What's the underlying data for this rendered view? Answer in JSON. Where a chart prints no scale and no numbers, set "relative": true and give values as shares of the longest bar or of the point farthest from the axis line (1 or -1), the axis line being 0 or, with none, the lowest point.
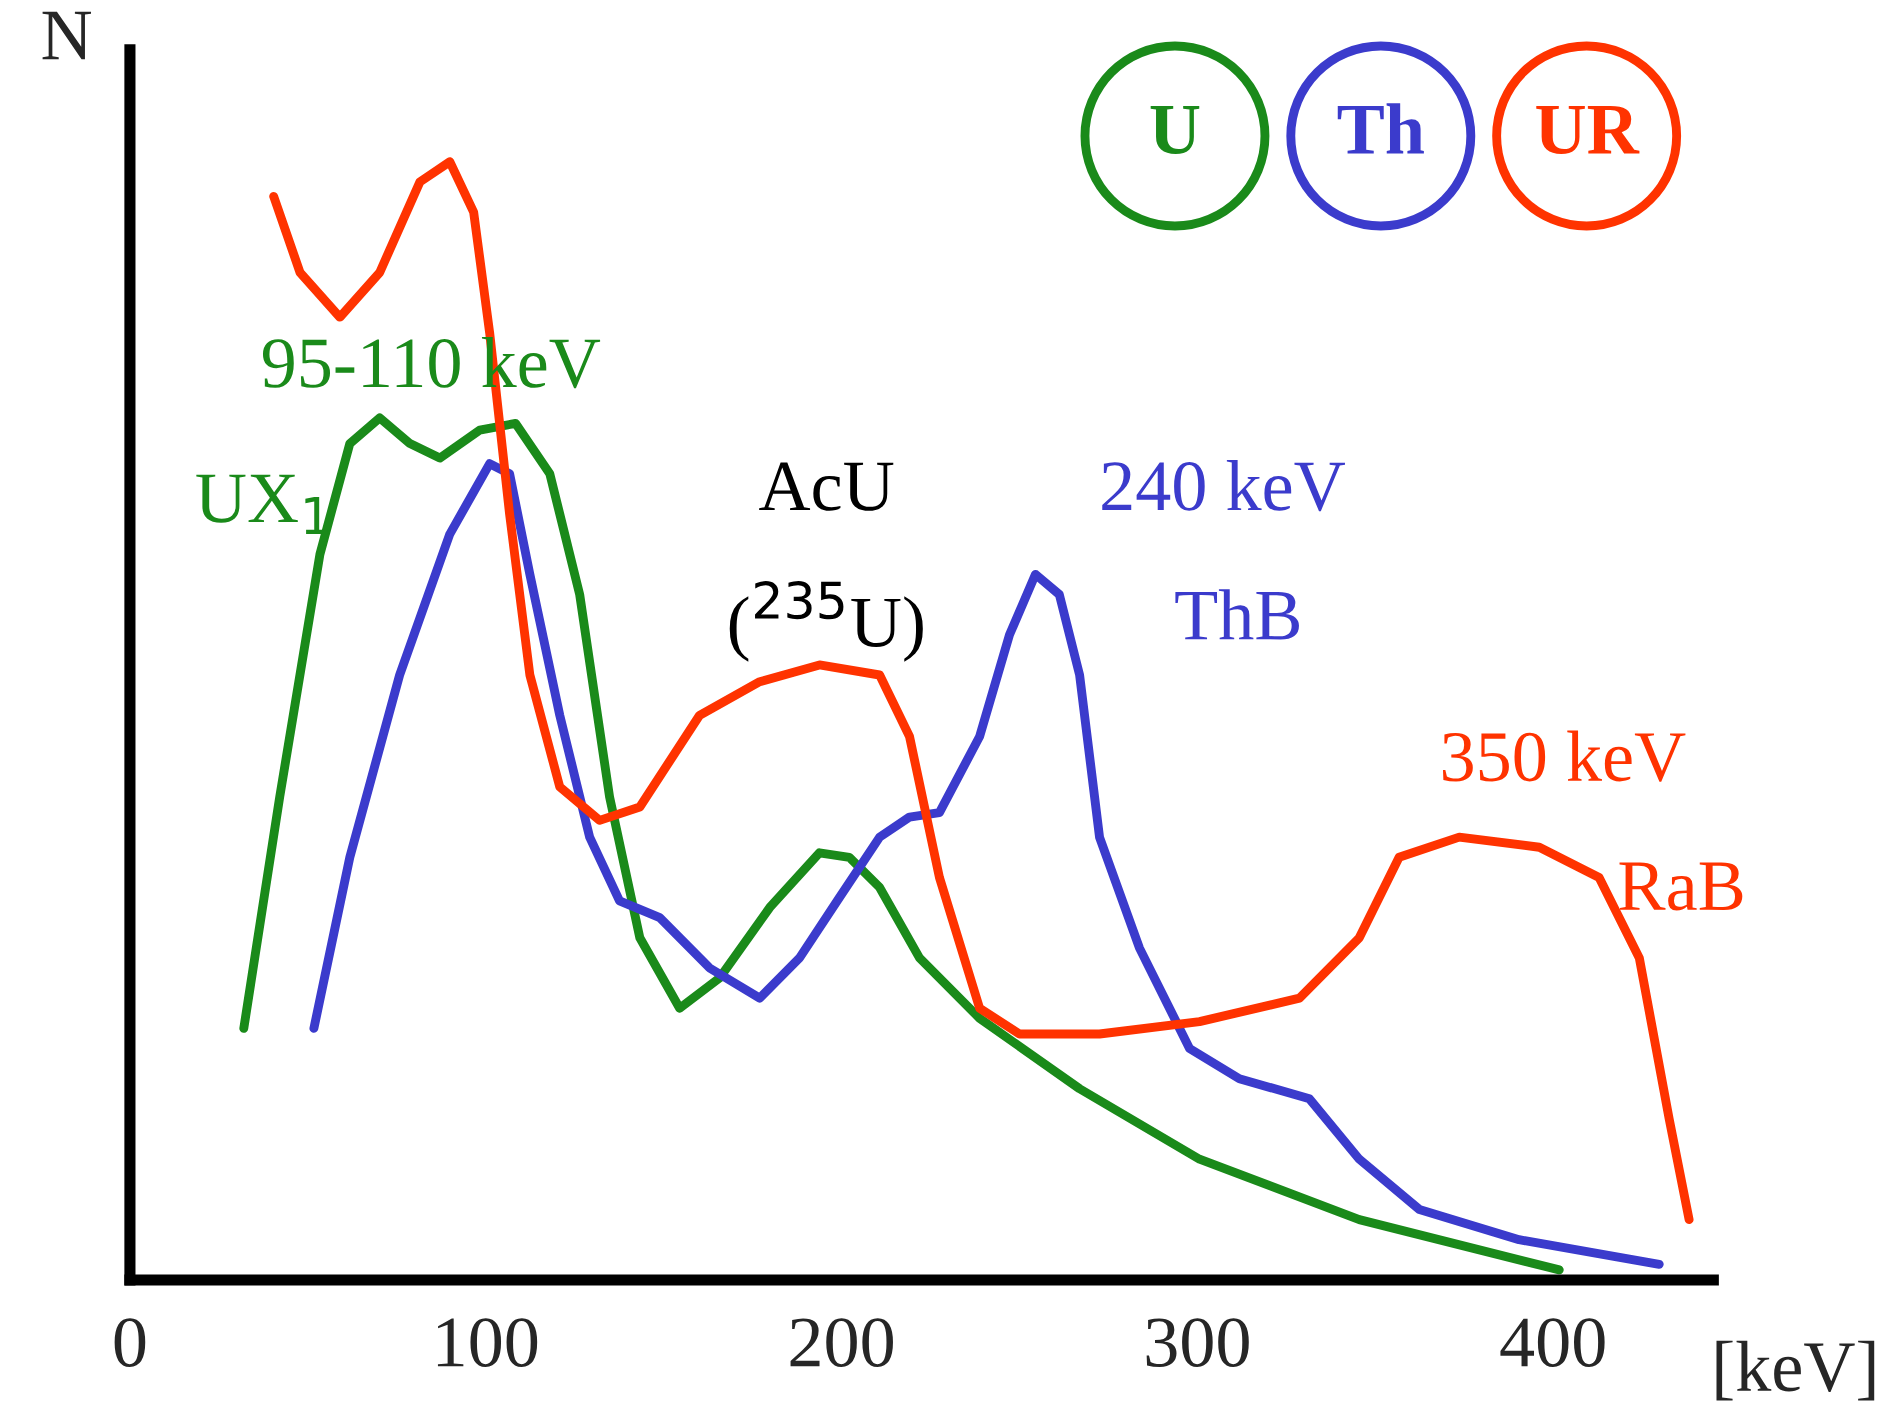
{
  "chart_data": {
    "type": "line",
    "relative": true,
    "xlabel": "[keV]",
    "ylabel": "N",
    "xlim": [
      0,
      445
    ],
    "xticks": [
      0,
      100,
      200,
      300,
      400
    ],
    "grid": false,
    "legend": "top right",
    "marker": "none",
    "line_style": "solid",
    "series": [
      {
        "name": "U",
        "color": "#1a8a1a",
        "x": [
          32.0,
          42.1,
          53.4,
          61.8,
          70.2,
          78.7,
          87.1,
          98.3,
          108.4,
          118.0,
          126.4,
          134.8,
          143.3,
          154.5,
          165.7,
          179.8,
          193.8,
          202.2,
          210.7,
          221.9,
          238.8,
          266.9,
          300.6,
          345.5,
          401.7
        ],
        "values": [
          0.225,
          0.432,
          0.649,
          0.748,
          0.771,
          0.748,
          0.735,
          0.76,
          0.766,
          0.721,
          0.613,
          0.432,
          0.306,
          0.243,
          0.27,
          0.333,
          0.382,
          0.378,
          0.351,
          0.288,
          0.234,
          0.171,
          0.108,
          0.054,
          0.009
        ]
      },
      {
        "name": "Th",
        "color": "#3b3bcc",
        "x": [
          51.7,
          61.8,
          75.8,
          89.9,
          101.1,
          106.7,
          112.4,
          120.8,
          129.2,
          137.6,
          148.9,
          162.9,
          177.0,
          188.2,
          199.4,
          210.7,
          219.1,
          227.5,
          238.8,
          247.2,
          254.5,
          261.2,
          266.9,
          272.5,
          283.7,
          297.8,
          311.8,
          331.5,
          345.5,
          362.4,
          390.4,
          429.8
        ],
        "values": [
          0.225,
          0.378,
          0.541,
          0.667,
          0.73,
          0.721,
          0.631,
          0.505,
          0.396,
          0.339,
          0.324,
          0.279,
          0.252,
          0.288,
          0.342,
          0.396,
          0.414,
          0.418,
          0.486,
          0.577,
          0.631,
          0.613,
          0.541,
          0.396,
          0.297,
          0.207,
          0.18,
          0.162,
          0.108,
          0.063,
          0.036,
          0.014
        ]
      },
      {
        "name": "UR",
        "color": "#ff3300",
        "x": [
          40.4,
          47.8,
          59.0,
          70.2,
          81.5,
          89.9,
          96.6,
          101.1,
          106.7,
          112.4,
          120.8,
          132.0,
          143.3,
          160.1,
          177.0,
          193.8,
          210.7,
          219.1,
          227.5,
          238.8,
          250.0,
          272.5,
          300.6,
          328.7,
          345.5,
          356.7,
          373.6,
          396.1,
          412.9,
          424.2,
          432.6,
          438.2
        ],
        "values": [
          0.969,
          0.901,
          0.861,
          0.901,
          0.982,
          1.0,
          0.955,
          0.847,
          0.685,
          0.541,
          0.441,
          0.411,
          0.423,
          0.505,
          0.535,
          0.55,
          0.541,
          0.486,
          0.36,
          0.243,
          0.22,
          0.22,
          0.231,
          0.252,
          0.306,
          0.378,
          0.396,
          0.387,
          0.36,
          0.288,
          0.144,
          0.054
        ]
      }
    ],
    "annotations": [
      "95-110 keV",
      "UX$_{1}$",
      "AcU",
      "($^{235}$U)",
      "240 keV",
      "ThB",
      "350 keV",
      "RaB"
    ]
  }
}
